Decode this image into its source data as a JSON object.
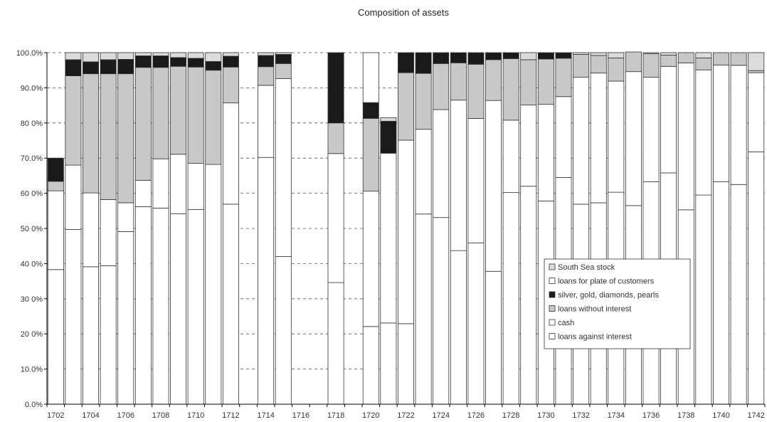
{
  "chart_data": {
    "type": "bar",
    "stacked": true,
    "title": "Composition of assets",
    "xlabel": "",
    "ylabel": "",
    "ylim": [
      0,
      100
    ],
    "y_ticks": [
      "0.0%",
      "10.0%",
      "20 0%",
      "30 0%",
      "40 0%",
      "50 0%",
      "60 0%",
      "70.0%",
      "80 0%",
      "90.0%",
      "100.0%"
    ],
    "x_tick_labels": [
      "1702",
      "1704",
      "1706",
      "1708",
      "1710",
      "1712",
      "1714",
      "1716",
      "1718",
      "1720",
      "1722",
      "1724",
      "1726",
      "1728",
      "1730",
      "1732",
      "1734",
      "1736",
      "1738",
      "1740",
      "1742"
    ],
    "grid": "horizontal dashed",
    "legend_position": "lower-right",
    "categories": [
      "1702",
      "1703",
      "1704",
      "1705",
      "1706",
      "1707",
      "1708",
      "1709",
      "1710",
      "1711",
      "1712",
      "1713",
      "1714",
      "1715",
      "1716",
      "1717",
      "1718",
      "1719",
      "1720",
      "1721",
      "1722",
      "1723",
      "1724",
      "1725",
      "1726",
      "1727",
      "1728",
      "1729",
      "1730",
      "1731",
      "1732",
      "1733",
      "1734",
      "1735",
      "1736",
      "1737",
      "1738",
      "1739",
      "1740",
      "1741",
      "1742"
    ],
    "series": [
      {
        "name": "loans against interest",
        "color": "#ffffff",
        "values": [
          38.3,
          49.7,
          39.1,
          39.4,
          49.1,
          56.2,
          55.8,
          54.2,
          55.4,
          68.2,
          56.9,
          null,
          70.2,
          42.0,
          null,
          null,
          34.6,
          null,
          22.1,
          23.1,
          22.9,
          54.1,
          53.1,
          43.7,
          45.9,
          37.8,
          60.2,
          62.0,
          57.8,
          64.5,
          56.9,
          57.3,
          60.3,
          56.5,
          63.3,
          65.8,
          55.3,
          59.5,
          63.3,
          62.5,
          71.8
        ]
      },
      {
        "name": "cash",
        "color": "#ffffff",
        "values": [
          22.4,
          18.3,
          21.0,
          18.8,
          8.2,
          7.5,
          14.0,
          16.9,
          13.1,
          0,
          28.8,
          null,
          20.5,
          50.6,
          null,
          null,
          36.7,
          null,
          38.5,
          48.3,
          52.2,
          24.1,
          30.7,
          42.8,
          35.4,
          48.6,
          20.6,
          23.1,
          27.5,
          23.0,
          36.1,
          36.9,
          31.6,
          38.1,
          29.7,
          30.3,
          41.8,
          35.6,
          33.2,
          33.9,
          22.5
        ]
      },
      {
        "name": "loans without interest",
        "color": "#c8c8c8",
        "values": [
          2.7,
          25.4,
          33.9,
          35.8,
          36.7,
          32.1,
          26.0,
          25.0,
          27.4,
          26.8,
          10.2,
          null,
          5.3,
          4.3,
          null,
          null,
          8.7,
          null,
          20.7,
          0,
          19.2,
          15.9,
          13.1,
          10.6,
          15.4,
          11.6,
          17.5,
          12.9,
          12.9,
          10.9,
          6.5,
          5.0,
          6.6,
          5.6,
          6.7,
          3.2,
          2.9,
          3.4,
          3.5,
          3.6,
          0.6
        ]
      },
      {
        "name": "silver, gold, diamonds, pearls",
        "color": "#1a1a1a",
        "values": [
          6.6,
          4.6,
          3.4,
          4.0,
          4.1,
          3.3,
          3.3,
          2.5,
          2.5,
          2.5,
          3.1,
          null,
          3.2,
          2.6,
          null,
          null,
          20.0,
          null,
          4.5,
          9.1,
          5.7,
          5.9,
          3.1,
          2.9,
          3.3,
          2.0,
          1.7,
          0,
          1.8,
          1.6,
          0,
          0,
          0,
          0,
          0,
          0,
          0,
          0,
          0,
          0,
          0
        ]
      },
      {
        "name": "loans for plate of customers",
        "color": "#ffffff",
        "values": [
          0,
          0,
          0,
          0,
          0,
          0,
          0,
          0,
          0,
          0,
          0,
          null,
          0,
          0,
          null,
          null,
          0,
          null,
          14.2,
          0,
          0,
          0,
          0,
          0,
          0,
          0,
          0,
          0,
          0,
          0,
          0,
          0,
          0,
          0,
          0,
          0,
          0,
          0,
          0,
          0,
          0
        ]
      },
      {
        "name": "South Sea stock",
        "color": "#dcdcdc",
        "values": [
          0,
          2.0,
          2.6,
          2.0,
          1.9,
          0.9,
          0.9,
          1.4,
          1.6,
          2.5,
          1.0,
          null,
          0.8,
          0.5,
          null,
          null,
          0,
          null,
          0,
          1.0,
          0,
          0,
          0,
          0,
          0,
          0,
          0,
          2.0,
          0,
          0,
          0.5,
          0.8,
          1.5,
          0,
          0.3,
          0.7,
          0,
          1.5,
          0,
          0,
          5.1
        ]
      }
    ]
  }
}
